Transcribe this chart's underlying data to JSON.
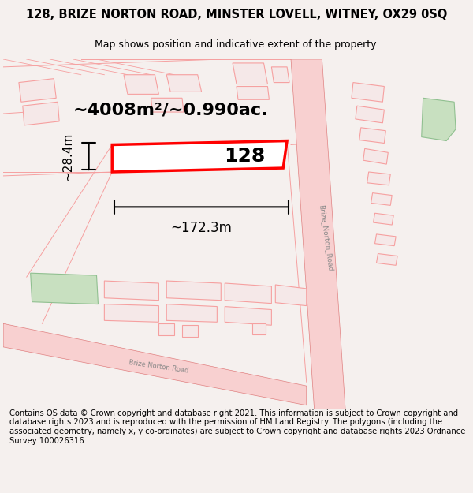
{
  "title_line1": "128, BRIZE NORTON ROAD, MINSTER LOVELL, WITNEY, OX29 0SQ",
  "title_line2": "Map shows position and indicative extent of the property.",
  "footer_text": "Contains OS data © Crown copyright and database right 2021. This information is subject to Crown copyright and database rights 2023 and is reproduced with the permission of HM Land Registry. The polygons (including the associated geometry, namely x, y co-ordinates) are subject to Crown copyright and database rights 2023 Ordnance Survey 100026316.",
  "bg_color": "#f5f0ee",
  "map_bg": "#ffffff",
  "highlight_color": "#ff0000",
  "road_color": "#f5a0a0",
  "building_color": "#f5c0c0",
  "green_color": "#c8e0c0",
  "area_label": "~4008m²/~0.990ac.",
  "width_label": "~172.3m",
  "height_label": "~28.4m",
  "plot_number": "128",
  "road_label": "Brize_Norton_Road"
}
